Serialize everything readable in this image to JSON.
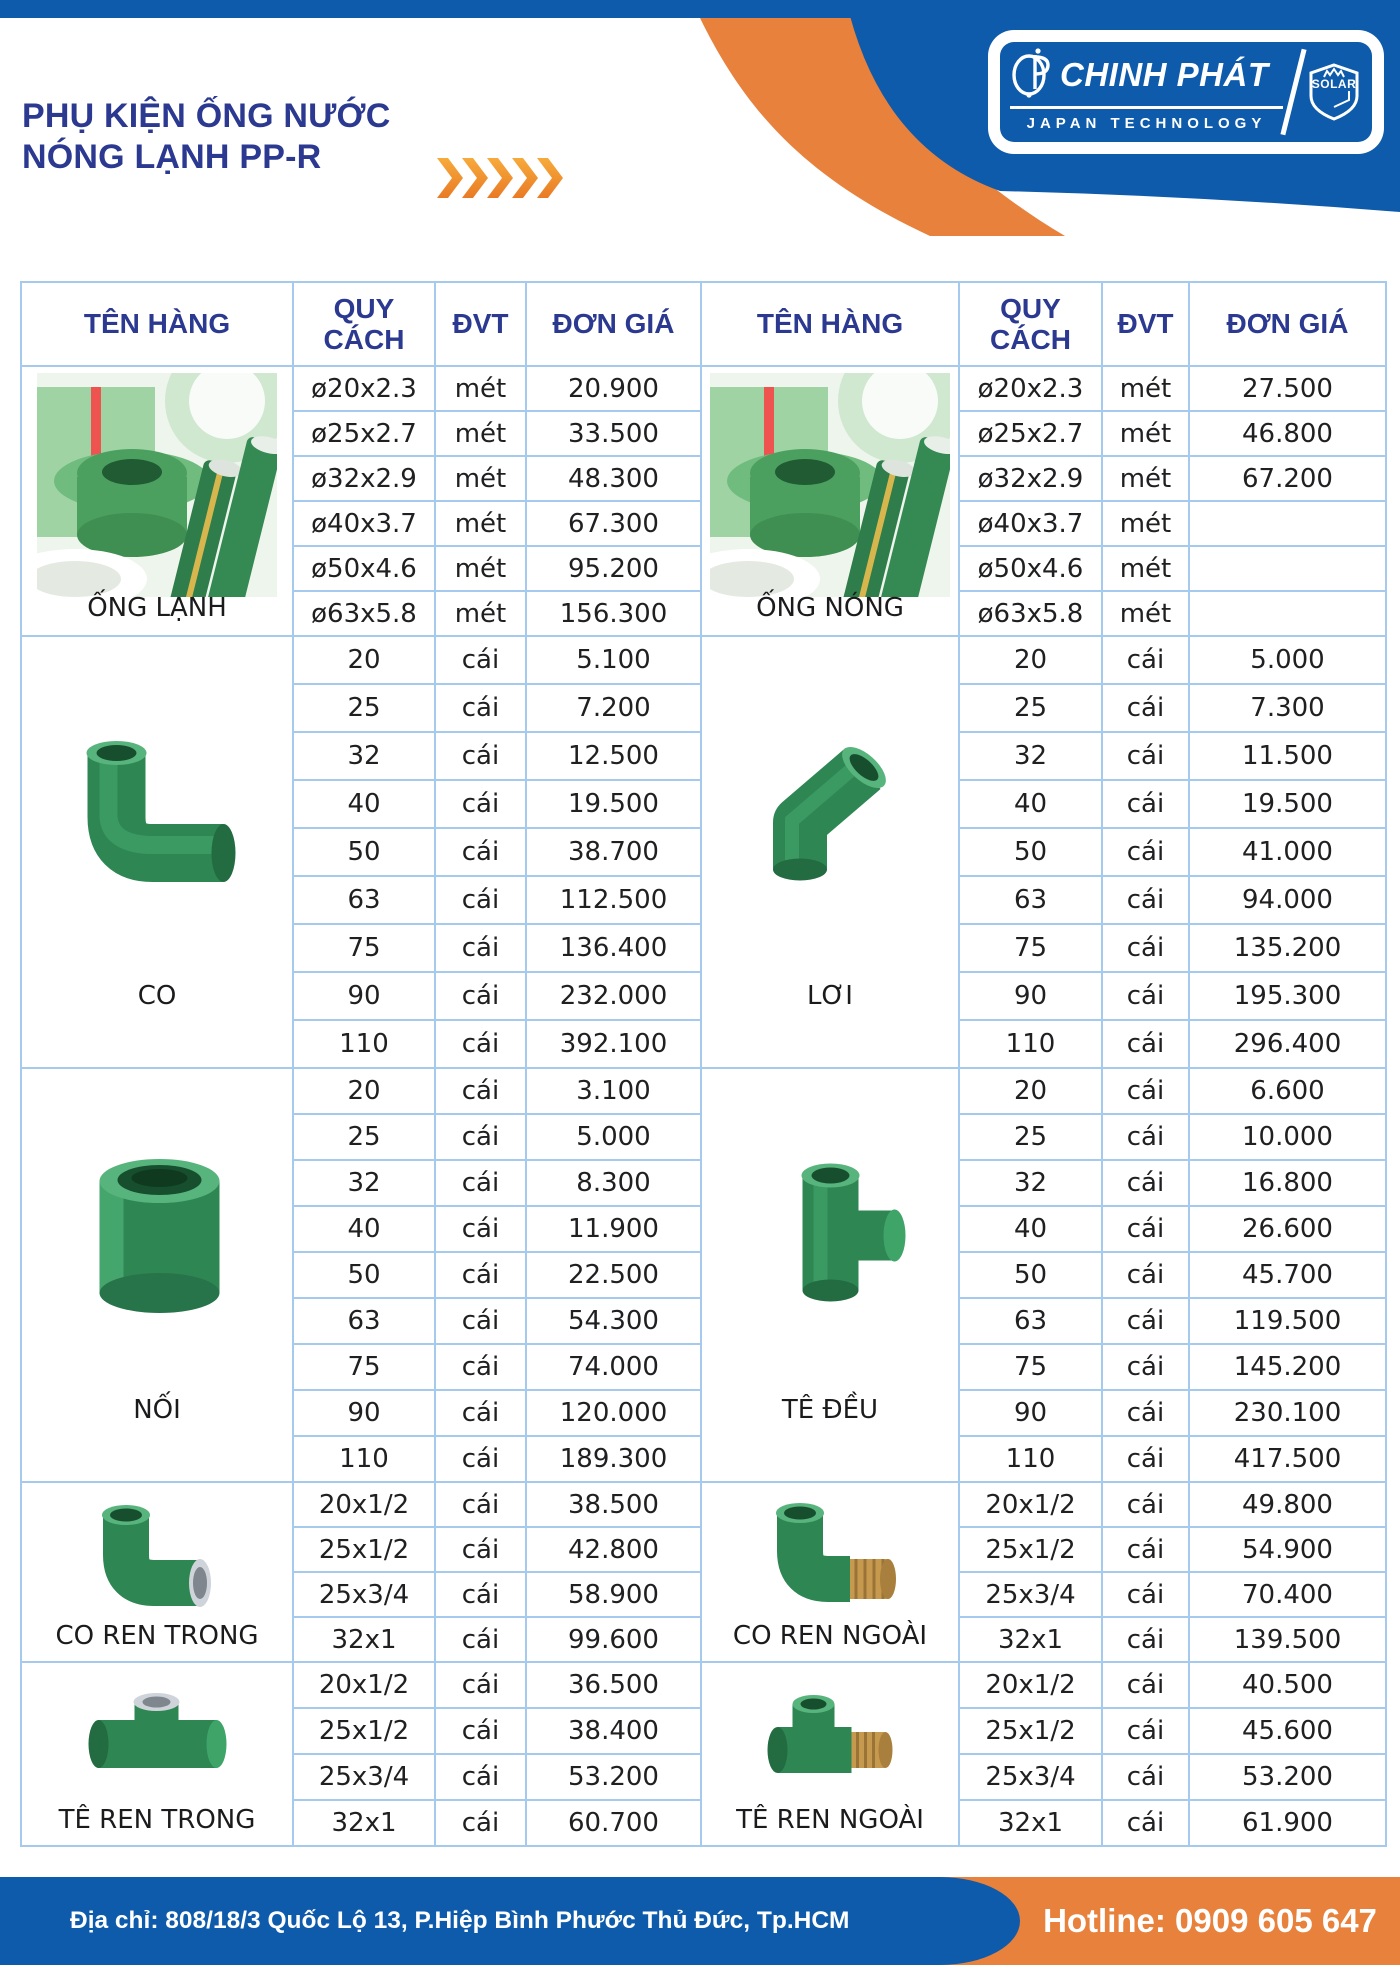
{
  "title": {
    "line1": "PHỤ KIỆN ỐNG NƯỚC",
    "line2": "NÓNG LẠNH PP-R"
  },
  "logo": {
    "brand": "CHINH PHÁT",
    "badge": "SOLAR",
    "tagline": "JAPAN TECHNOLOGY"
  },
  "colors": {
    "brand_blue": "#0e5bab",
    "brand_orange": "#e8813c",
    "navy_text": "#2b3990",
    "table_border": "#a6c9ee"
  },
  "table": {
    "headers": [
      "TÊN HÀNG",
      "QUY CÁCH",
      "ĐVT",
      "ĐƠN GIÁ"
    ],
    "sections": [
      {
        "left": {
          "name": "ỐNG LẠNH",
          "image": "green-pipes",
          "rows": [
            {
              "spec": "ø20x2.3",
              "unit": "mét",
              "price": "20.900"
            },
            {
              "spec": "ø25x2.7",
              "unit": "mét",
              "price": "33.500"
            },
            {
              "spec": "ø32x2.9",
              "unit": "mét",
              "price": "48.300"
            },
            {
              "spec": "ø40x3.7",
              "unit": "mét",
              "price": "67.300"
            },
            {
              "spec": "ø50x4.6",
              "unit": "mét",
              "price": "95.200"
            },
            {
              "spec": "ø63x5.8",
              "unit": "mét",
              "price": "156.300"
            }
          ]
        },
        "right": {
          "name": "ỐNG NÓNG",
          "image": "green-pipes",
          "rows": [
            {
              "spec": "ø20x2.3",
              "unit": "mét",
              "price": "27.500"
            },
            {
              "spec": "ø25x2.7",
              "unit": "mét",
              "price": "46.800"
            },
            {
              "spec": "ø32x2.9",
              "unit": "mét",
              "price": "67.200"
            },
            {
              "spec": "ø40x3.7",
              "unit": "mét",
              "price": ""
            },
            {
              "spec": "ø50x4.6",
              "unit": "mét",
              "price": ""
            },
            {
              "spec": "ø63x5.8",
              "unit": "mét",
              "price": ""
            }
          ]
        }
      },
      {
        "left": {
          "name": "CO",
          "image": "elbow-90",
          "rows": [
            {
              "spec": "20",
              "unit": "cái",
              "price": "5.100"
            },
            {
              "spec": "25",
              "unit": "cái",
              "price": "7.200"
            },
            {
              "spec": "32",
              "unit": "cái",
              "price": "12.500"
            },
            {
              "spec": "40",
              "unit": "cái",
              "price": "19.500"
            },
            {
              "spec": "50",
              "unit": "cái",
              "price": "38.700"
            },
            {
              "spec": "63",
              "unit": "cái",
              "price": "112.500"
            },
            {
              "spec": "75",
              "unit": "cái",
              "price": "136.400"
            },
            {
              "spec": "90",
              "unit": "cái",
              "price": "232.000"
            },
            {
              "spec": "110",
              "unit": "cái",
              "price": "392.100"
            }
          ]
        },
        "right": {
          "name": "LƠI",
          "image": "elbow-45",
          "rows": [
            {
              "spec": "20",
              "unit": "cái",
              "price": "5.000"
            },
            {
              "spec": "25",
              "unit": "cái",
              "price": "7.300"
            },
            {
              "spec": "32",
              "unit": "cái",
              "price": "11.500"
            },
            {
              "spec": "40",
              "unit": "cái",
              "price": "19.500"
            },
            {
              "spec": "50",
              "unit": "cái",
              "price": "41.000"
            },
            {
              "spec": "63",
              "unit": "cái",
              "price": "94.000"
            },
            {
              "spec": "75",
              "unit": "cái",
              "price": "135.200"
            },
            {
              "spec": "90",
              "unit": "cái",
              "price": "195.300"
            },
            {
              "spec": "110",
              "unit": "cái",
              "price": "296.400"
            }
          ]
        }
      },
      {
        "left": {
          "name": "NỐI",
          "image": "coupling",
          "rows": [
            {
              "spec": "20",
              "unit": "cái",
              "price": "3.100"
            },
            {
              "spec": "25",
              "unit": "cái",
              "price": "5.000"
            },
            {
              "spec": "32",
              "unit": "cái",
              "price": "8.300"
            },
            {
              "spec": "40",
              "unit": "cái",
              "price": "11.900"
            },
            {
              "spec": "50",
              "unit": "cái",
              "price": "22.500"
            },
            {
              "spec": "63",
              "unit": "cái",
              "price": "54.300"
            },
            {
              "spec": "75",
              "unit": "cái",
              "price": "74.000"
            },
            {
              "spec": "90",
              "unit": "cái",
              "price": "120.000"
            },
            {
              "spec": "110",
              "unit": "cái",
              "price": "189.300"
            }
          ]
        },
        "right": {
          "name": "TÊ ĐỀU",
          "image": "tee",
          "rows": [
            {
              "spec": "20",
              "unit": "cái",
              "price": "6.600"
            },
            {
              "spec": "25",
              "unit": "cái",
              "price": "10.000"
            },
            {
              "spec": "32",
              "unit": "cái",
              "price": "16.800"
            },
            {
              "spec": "40",
              "unit": "cái",
              "price": "26.600"
            },
            {
              "spec": "50",
              "unit": "cái",
              "price": "45.700"
            },
            {
              "spec": "63",
              "unit": "cái",
              "price": "119.500"
            },
            {
              "spec": "75",
              "unit": "cái",
              "price": "145.200"
            },
            {
              "spec": "90",
              "unit": "cái",
              "price": "230.100"
            },
            {
              "spec": "110",
              "unit": "cái",
              "price": "417.500"
            }
          ]
        }
      },
      {
        "left": {
          "name": "CO REN TRONG",
          "image": "elbow-female-thread",
          "rows": [
            {
              "spec": "20x1/2",
              "unit": "cái",
              "price": "38.500"
            },
            {
              "spec": "25x1/2",
              "unit": "cái",
              "price": "42.800"
            },
            {
              "spec": "25x3/4",
              "unit": "cái",
              "price": "58.900"
            },
            {
              "spec": "32x1",
              "unit": "cái",
              "price": "99.600"
            }
          ]
        },
        "right": {
          "name": "CO REN NGOÀI",
          "image": "elbow-male-thread",
          "rows": [
            {
              "spec": "20x1/2",
              "unit": "cái",
              "price": "49.800"
            },
            {
              "spec": "25x1/2",
              "unit": "cái",
              "price": "54.900"
            },
            {
              "spec": "25x3/4",
              "unit": "cái",
              "price": "70.400"
            },
            {
              "spec": "32x1",
              "unit": "cái",
              "price": "139.500"
            }
          ]
        }
      },
      {
        "left": {
          "name": "TÊ REN TRONG",
          "image": "tee-female-thread",
          "rows": [
            {
              "spec": "20x1/2",
              "unit": "cái",
              "price": "36.500"
            },
            {
              "spec": "25x1/2",
              "unit": "cái",
              "price": "38.400"
            },
            {
              "spec": "25x3/4",
              "unit": "cái",
              "price": "53.200"
            },
            {
              "spec": "32x1",
              "unit": "cái",
              "price": "60.700"
            }
          ]
        },
        "right": {
          "name": "TÊ REN NGOÀI",
          "image": "tee-male-thread",
          "rows": [
            {
              "spec": "20x1/2",
              "unit": "cái",
              "price": "40.500"
            },
            {
              "spec": "25x1/2",
              "unit": "cái",
              "price": "45.600"
            },
            {
              "spec": "25x3/4",
              "unit": "cái",
              "price": "53.200"
            },
            {
              "spec": "32x1",
              "unit": "cái",
              "price": "61.900"
            }
          ]
        }
      }
    ]
  },
  "footer": {
    "address": "Địa chỉ: 808/18/3 Quốc Lộ 13, P.Hiệp Bình Phước Thủ Đức, Tp.HCM",
    "hotline": "Hotline: 0909 605 647"
  }
}
